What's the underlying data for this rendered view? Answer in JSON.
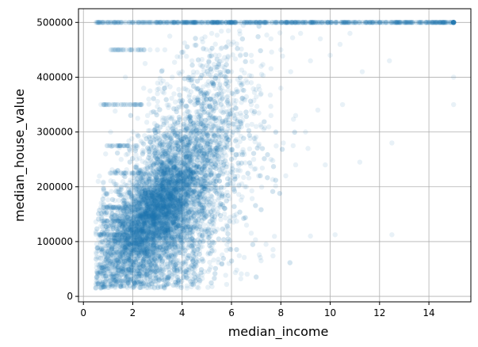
{
  "chart_data": {
    "type": "scatter",
    "title": "",
    "xlabel": "median_income",
    "ylabel": "median_house_value",
    "xlim": [
      -0.2,
      15.7
    ],
    "ylim": [
      -10000,
      525000
    ],
    "xticks": [
      0,
      2,
      4,
      6,
      8,
      10,
      12,
      14
    ],
    "yticks": [
      0,
      100000,
      200000,
      300000,
      400000,
      500000
    ],
    "grid": true,
    "legend": "none",
    "marker_color": "#1f77b4",
    "marker_alpha": 0.1,
    "series": [
      {
        "points": [
          [
            0.5,
            14999
          ],
          [
            0.6,
            22500
          ],
          [
            0.7,
            50000
          ],
          [
            0.7,
            112500
          ],
          [
            0.8,
            137500
          ],
          [
            0.8,
            162500
          ],
          [
            0.9,
            67500
          ],
          [
            0.9,
            187500
          ],
          [
            1.0,
            55000
          ],
          [
            1.0,
            87500
          ],
          [
            1.0,
            350000
          ],
          [
            1.1,
            225000
          ],
          [
            1.1,
            75000
          ],
          [
            1.2,
            60000
          ],
          [
            1.2,
            112500
          ],
          [
            1.3,
            350000
          ],
          [
            1.3,
            450000
          ],
          [
            1.4,
            500001
          ],
          [
            1.5,
            275000
          ],
          [
            1.5,
            137500
          ],
          [
            1.6,
            450000
          ],
          [
            1.7,
            500001
          ],
          [
            1.8,
            350000
          ],
          [
            1.9,
            187500
          ],
          [
            2.0,
            500001
          ],
          [
            2.1,
            450000
          ],
          [
            2.2,
            325000
          ],
          [
            2.3,
            500001
          ],
          [
            2.4,
            262500
          ],
          [
            2.5,
            425000
          ],
          [
            2.6,
            500001
          ],
          [
            2.7,
            375000
          ],
          [
            2.8,
            500001
          ],
          [
            3.0,
            450000
          ],
          [
            3.1,
            500001
          ],
          [
            3.2,
            412500
          ],
          [
            3.4,
            500001
          ],
          [
            3.5,
            475000
          ],
          [
            3.7,
            500001
          ],
          [
            3.8,
            437500
          ],
          [
            4.0,
            500001
          ],
          [
            4.1,
            462500
          ],
          [
            4.3,
            500001
          ],
          [
            4.4,
            430000
          ],
          [
            4.6,
            500001
          ],
          [
            4.8,
            470000
          ],
          [
            5.0,
            500001
          ],
          [
            5.2,
            480000
          ],
          [
            5.4,
            500001
          ],
          [
            5.6,
            430000
          ],
          [
            5.8,
            500001
          ],
          [
            6.0,
            460000
          ],
          [
            6.2,
            500001
          ],
          [
            6.4,
            390000
          ],
          [
            6.6,
            500001
          ],
          [
            6.8,
            440000
          ],
          [
            7.0,
            500001
          ],
          [
            7.2,
            420000
          ],
          [
            7.4,
            500001
          ],
          [
            7.6,
            470000
          ],
          [
            7.8,
            500001
          ],
          [
            8.0,
            450000
          ],
          [
            8.2,
            500001
          ],
          [
            8.4,
            410000
          ],
          [
            8.6,
            500001
          ],
          [
            8.8,
            480000
          ],
          [
            9.0,
            500001
          ],
          [
            9.2,
            430000
          ],
          [
            9.4,
            500001
          ],
          [
            9.6,
            470000
          ],
          [
            9.8,
            500001
          ],
          [
            10.0,
            440000
          ],
          [
            10.2,
            500001
          ],
          [
            10.4,
            460000
          ],
          [
            10.6,
            500001
          ],
          [
            10.8,
            480000
          ],
          [
            11.0,
            500001
          ],
          [
            11.3,
            410000
          ],
          [
            11.6,
            500001
          ],
          [
            12.0,
            500001
          ],
          [
            12.4,
            430000
          ],
          [
            12.5,
            280000
          ],
          [
            12.5,
            112500
          ],
          [
            12.8,
            500001
          ],
          [
            13.2,
            500001
          ],
          [
            13.6,
            500001
          ],
          [
            14.0,
            500001
          ],
          [
            14.4,
            500001
          ],
          [
            15.0,
            500001
          ],
          [
            15.0,
            400000
          ],
          [
            15.0,
            350000
          ],
          [
            10.5,
            350000
          ],
          [
            10.2,
            112500
          ],
          [
            9.8,
            240000
          ],
          [
            9.2,
            110000
          ],
          [
            8.5,
            275000
          ],
          [
            8.2,
            220000
          ],
          [
            7.6,
            330000
          ],
          [
            7.4,
            95000
          ],
          [
            7.0,
            310000
          ],
          [
            6.9,
            250000
          ],
          [
            6.5,
            360000
          ],
          [
            6.2,
            150000
          ],
          [
            11.2,
            245000
          ],
          [
            9.5,
            340000
          ],
          [
            8.0,
            380000
          ],
          [
            7.2,
            65000
          ],
          [
            6.8,
            390000
          ],
          [
            5.9,
            60000
          ],
          [
            5.5,
            440000
          ],
          [
            4.9,
            45000
          ],
          [
            4.5,
            35000
          ],
          [
            4.2,
            15000
          ],
          [
            3.8,
            25000
          ],
          [
            3.4,
            30000
          ],
          [
            2.9,
            32000
          ],
          [
            2.5,
            38000
          ],
          [
            1.9,
            45000
          ],
          [
            1.6,
            70000
          ],
          [
            1.3,
            100000
          ],
          [
            2.0,
            300000
          ],
          [
            2.3,
            350000
          ],
          [
            2.6,
            330000
          ],
          [
            3.0,
            370000
          ],
          [
            3.3,
            380000
          ],
          [
            3.6,
            400000
          ],
          [
            4.0,
            410000
          ],
          [
            4.4,
            390000
          ],
          [
            4.8,
            420000
          ],
          [
            5.2,
            400000
          ],
          [
            5.6,
            380000
          ],
          [
            6.0,
            410000
          ],
          [
            6.4,
            330000
          ],
          [
            6.8,
            350000
          ],
          [
            7.2,
            370000
          ],
          [
            7.8,
            300000
          ],
          [
            8.6,
            330000
          ],
          [
            9.0,
            300000
          ],
          [
            5.3,
            120000
          ],
          [
            5.8,
            130000
          ],
          [
            6.1,
            200000
          ],
          [
            6.6,
            200000
          ],
          [
            7.1,
            220000
          ],
          [
            7.6,
            250000
          ],
          [
            8.1,
            280000
          ],
          [
            8.6,
            240000
          ],
          [
            9.1,
            270000
          ],
          [
            2.2,
            450000
          ],
          [
            2.7,
            450000
          ],
          [
            3.3,
            450000
          ],
          [
            1.7,
            400000
          ],
          [
            1.1,
            300000
          ],
          [
            0.9,
            260000
          ],
          [
            1.4,
            230000
          ],
          [
            1.8,
            260000
          ],
          [
            2.1,
            230000
          ],
          [
            1.0,
            112500
          ],
          [
            0.8,
            87500
          ],
          [
            1.2,
            137500
          ],
          [
            1.5,
            162500
          ]
        ]
      }
    ]
  }
}
